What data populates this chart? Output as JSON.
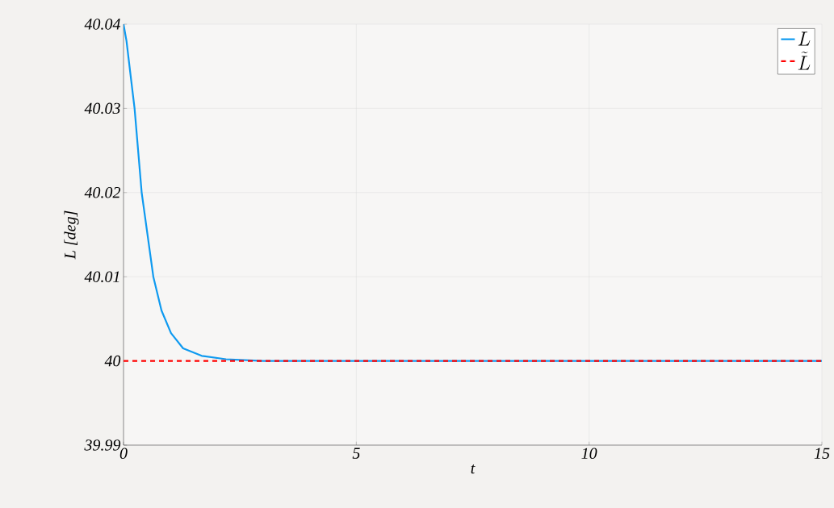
{
  "chart_data": {
    "type": "line",
    "xlabel": "t",
    "ylabel": "L [deg]",
    "xlim": [
      0,
      15
    ],
    "ylim": [
      39.99,
      40.04
    ],
    "xticks": [
      0,
      5,
      10,
      15
    ],
    "yticks": [
      {
        "value": 39.99,
        "label": "39.99"
      },
      {
        "value": 40,
        "label": "40"
      },
      {
        "value": 40.01,
        "label": "40.01"
      },
      {
        "value": 40.02,
        "label": "40.02"
      },
      {
        "value": 40.03,
        "label": "40.03"
      },
      {
        "value": 40.04,
        "label": "40.04"
      }
    ],
    "grid": true,
    "legend": "top right",
    "series": [
      {
        "name": "L",
        "color": "#0f9af0",
        "line_style": "solid",
        "x": [
          0,
          0.064,
          0.15,
          0.237,
          0.39,
          0.64,
          0.815,
          1.02,
          1.28,
          1.68,
          2.2,
          3,
          15
        ],
        "values": [
          40.04,
          40.038,
          40.034,
          40.03,
          40.02,
          40.01,
          40.006,
          40.0033,
          40.0015,
          40.0006,
          40.0002,
          40,
          40
        ]
      },
      {
        "name": "\\tilde{L}",
        "color": "#ff0000",
        "line_style": "dashed",
        "x": [
          0,
          15
        ],
        "values": [
          40,
          40
        ]
      }
    ]
  }
}
